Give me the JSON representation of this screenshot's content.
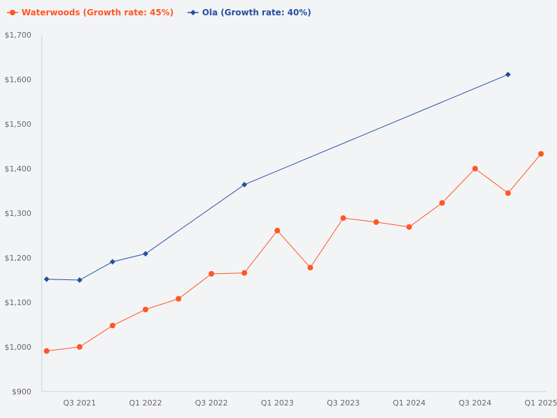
{
  "chart_data": {
    "type": "line",
    "title": "",
    "xlabel": "",
    "ylabel": "",
    "ylim": [
      900,
      1700
    ],
    "yticks": [
      "$900",
      "$1,000",
      "$1,100",
      "$1,200",
      "$1,300",
      "$1,400",
      "$1,500",
      "$1,600",
      "$1,700"
    ],
    "ytick_values": [
      900,
      1000,
      1100,
      1200,
      1300,
      1400,
      1500,
      1600,
      1700
    ],
    "x": [
      "Q2 2021",
      "Q3 2021",
      "Q4 2021",
      "Q1 2022",
      "Q2 2022",
      "Q3 2022",
      "Q4 2022",
      "Q1 2023",
      "Q2 2023",
      "Q3 2023",
      "Q4 2023",
      "Q1 2024",
      "Q2 2024",
      "Q3 2024",
      "Q4 2024",
      "Q1 2025"
    ],
    "xtick_labels": [
      "Q3 2021",
      "Q1 2022",
      "Q3 2022",
      "Q1 2023",
      "Q3 2023",
      "Q1 2024",
      "Q3 2024",
      "Q1 2025"
    ],
    "grid": false,
    "legend_placement": "top-left",
    "series": [
      {
        "name": "Waterwoods (Growth rate: 45%)",
        "color": "#ff5722",
        "marker": "circle",
        "values": [
          991,
          1000,
          1048,
          1084,
          1108,
          1164,
          1166,
          1261,
          1178,
          1289,
          1280,
          1269,
          1323,
          1400,
          1345,
          1433
        ]
      },
      {
        "name": "Ola (Growth rate: 40%)",
        "color": "#2550a0",
        "marker": "diamond",
        "values": [
          1152,
          1150,
          1191,
          1209,
          null,
          null,
          1364,
          null,
          null,
          null,
          null,
          null,
          null,
          null,
          1611,
          null
        ]
      }
    ]
  }
}
